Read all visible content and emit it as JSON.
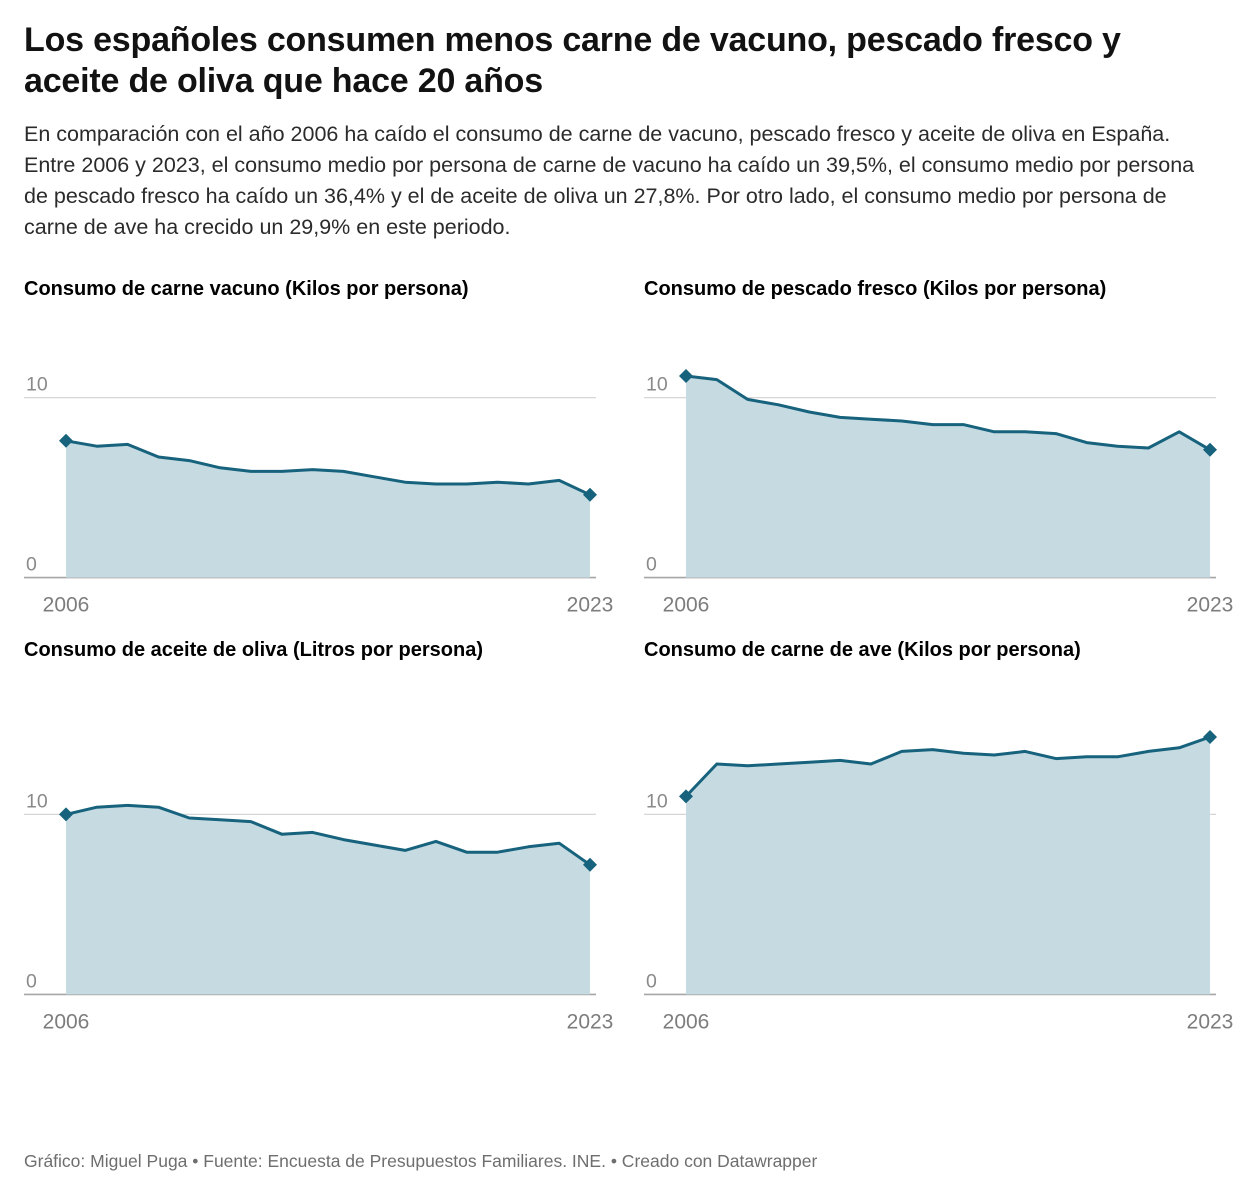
{
  "header": {
    "title": "Los españoles consumen menos carne de vacuno, pescado fresco y aceite de oliva que hace 20 años",
    "description": "En comparación con el año 2006 ha caído el consumo de carne de vacuno, pescado fresco y aceite de oliva en España. Entre 2006 y 2023, el consumo medio por persona de carne de vacuno ha caído un 39,5%, el consumo medio por persona de pescado fresco ha caído un 36,4% y el de aceite de oliva un 27,8%. Por otro lado, el consumo medio por persona de carne de ave ha crecido un 29,9% en este periodo."
  },
  "footer": {
    "text": "Gráfico: Miguel Puga • Fuente: Encuesta de Presupuestos Familiares. INE. • Creado con Datawrapper"
  },
  "colors": {
    "line": "#17637d",
    "fill": "#c6dae2",
    "grid": "#d6d6d6",
    "baseline": "#a6a6a6",
    "axis_text": "#8a8a8a"
  },
  "chart_data": [
    {
      "type": "area",
      "title": "Consumo de carne vacuno (Kilos por persona)",
      "x": [
        2006,
        2007,
        2008,
        2009,
        2010,
        2011,
        2012,
        2013,
        2014,
        2015,
        2016,
        2017,
        2018,
        2019,
        2020,
        2021,
        2022,
        2023
      ],
      "values": [
        7.6,
        7.3,
        7.4,
        6.7,
        6.5,
        6.1,
        5.9,
        5.9,
        6.0,
        5.9,
        5.6,
        5.3,
        5.2,
        5.2,
        5.3,
        5.2,
        5.4,
        4.6
      ],
      "ylim": [
        0,
        11.7
      ],
      "yticks": [
        0,
        10
      ],
      "x_labels": [
        "2006",
        "2023"
      ],
      "unit": "Kilos por persona"
    },
    {
      "type": "area",
      "title": "Consumo de pescado fresco (Kilos por persona)",
      "x": [
        2006,
        2007,
        2008,
        2009,
        2010,
        2011,
        2012,
        2013,
        2014,
        2015,
        2016,
        2017,
        2018,
        2019,
        2020,
        2021,
        2022,
        2023
      ],
      "values": [
        11.2,
        11.0,
        9.9,
        9.6,
        9.2,
        8.9,
        8.8,
        8.7,
        8.5,
        8.5,
        8.1,
        8.1,
        8.0,
        7.5,
        7.3,
        7.2,
        8.1,
        7.1
      ],
      "ylim": [
        0,
        11.7
      ],
      "yticks": [
        0,
        10
      ],
      "x_labels": [
        "2006",
        "2023"
      ],
      "unit": "Kilos por persona"
    },
    {
      "type": "area",
      "title": "Consumo de aceite de oliva (Litros por persona)",
      "x": [
        2006,
        2007,
        2008,
        2009,
        2010,
        2011,
        2012,
        2013,
        2014,
        2015,
        2016,
        2017,
        2018,
        2019,
        2020,
        2021,
        2022,
        2023
      ],
      "values": [
        10.0,
        10.4,
        10.5,
        10.4,
        9.8,
        9.7,
        9.6,
        8.9,
        9.0,
        8.6,
        8.3,
        8.0,
        8.5,
        7.9,
        7.9,
        8.2,
        8.4,
        7.2
      ],
      "ylim": [
        0,
        14.8
      ],
      "yticks": [
        0,
        10
      ],
      "x_labels": [
        "2006",
        "2023"
      ],
      "unit": "Litros por persona"
    },
    {
      "type": "area",
      "title": "Consumo de carne de ave (Kilos por persona)",
      "x": [
        2006,
        2007,
        2008,
        2009,
        2010,
        2011,
        2012,
        2013,
        2014,
        2015,
        2016,
        2017,
        2018,
        2019,
        2020,
        2021,
        2022,
        2023
      ],
      "values": [
        11.0,
        12.8,
        12.7,
        12.8,
        12.9,
        13.0,
        12.8,
        13.5,
        13.6,
        13.4,
        13.3,
        13.5,
        13.1,
        13.2,
        13.2,
        13.5,
        13.7,
        14.3
      ],
      "ylim": [
        0,
        14.8
      ],
      "yticks": [
        0,
        10
      ],
      "x_labels": [
        "2006",
        "2023"
      ],
      "unit": "Kilos por persona"
    }
  ]
}
